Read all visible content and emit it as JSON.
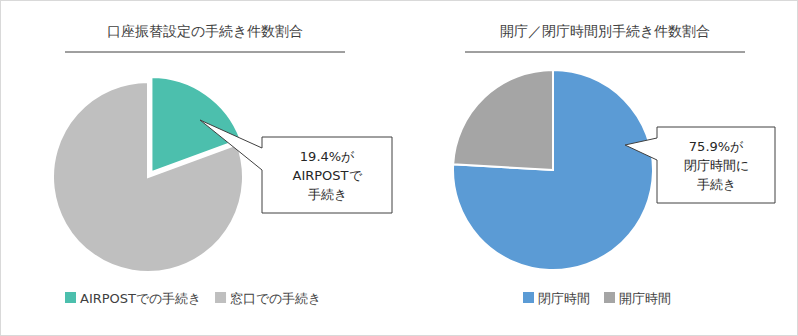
{
  "chart_data": [
    {
      "type": "pie",
      "title": "口座振替設定の手続き件数割合",
      "categories": [
        "AIRPOSTでの手続き",
        "窓口での手続き"
      ],
      "values": [
        19.4,
        80.6
      ],
      "colors": [
        "#4cbfad",
        "#bfbfbf"
      ],
      "annotations": [
        "19.4%が",
        "AIRPOSTで",
        "手続き"
      ],
      "legend": "bottom"
    },
    {
      "type": "pie",
      "title": "開庁／閉庁時間別手続き件数割合",
      "categories": [
        "閉庁時間",
        "開庁時間"
      ],
      "values": [
        75.9,
        24.1
      ],
      "colors": [
        "#5b9bd5",
        "#a5a5a5"
      ],
      "annotations": [
        "75.9%が",
        "閉庁時間に",
        "手続き"
      ],
      "legend": "bottom"
    }
  ]
}
